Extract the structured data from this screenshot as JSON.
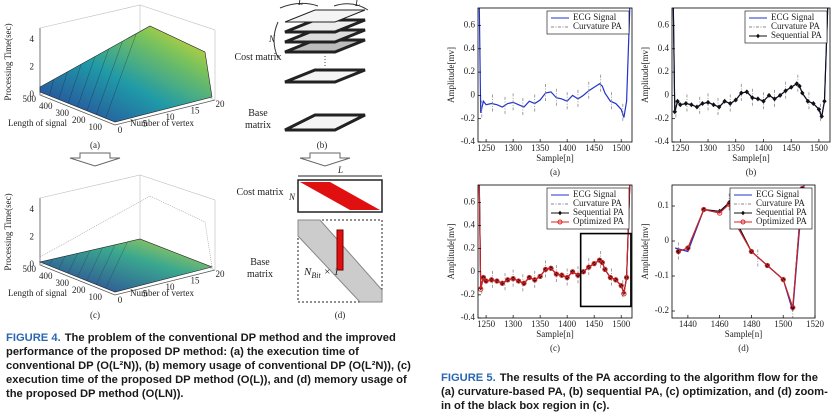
{
  "figure4": {
    "panel_a": {
      "z_label": "Processing Time(sec)",
      "z_ticks": [
        0,
        2,
        4
      ],
      "y_label": "Length of signal",
      "y_ticks": [
        500,
        400,
        300,
        200,
        100
      ],
      "x_label": "Number of vertex",
      "x_ticks": [
        0,
        5,
        10,
        15,
        20
      ],
      "label": "(a)"
    },
    "panel_b": {
      "width_label": "L",
      "depth_label": "L",
      "height_label": "N",
      "cost": "Cost matrix",
      "base": "Base matrix",
      "label": "(b)"
    },
    "panel_c": {
      "z_label": "Processing Time(sec)",
      "z_ticks": [
        0,
        2,
        4
      ],
      "y_label": "Length of signal",
      "y_ticks": [
        500,
        400,
        300,
        200,
        100
      ],
      "x_label": "Number of vertex",
      "x_ticks": [
        0,
        5,
        10,
        15,
        20
      ],
      "label": "(c)"
    },
    "panel_d": {
      "width_label": "L",
      "height_label": "N",
      "cost": "Cost matrix",
      "base": "Base matrix",
      "nbit": {
        "base": "N",
        "sub": "Bit",
        "rest": "× 1"
      },
      "label": "(d)"
    },
    "caption": {
      "label": "FIGURE 4.",
      "text": "The problem of the conventional DP method and the improved performance of the proposed DP method: (a) the execution time of conventional DP (O(L²N)), (b) memory usage of conventional DP (O(L²N)), (c) execution time of the proposed DP method (O(L)), and (d) memory usage of the proposed DP method (O(LN))."
    }
  },
  "chart_data": [
    {
      "type": "line",
      "panel_label": "(a)",
      "x_label": "Sample[n]",
      "y_label": "Amplitude[mv]",
      "xlim": [
        1235,
        1520
      ],
      "ylim": [
        -0.4,
        0.75
      ],
      "xticks": [
        1250,
        1300,
        1350,
        1400,
        1450,
        1500
      ],
      "yticks": [
        -0.4,
        -0.2,
        0,
        0.2,
        0.4,
        0.6
      ],
      "legend": "upper right",
      "series": [
        {
          "name": "ECG Signal",
          "color": "#2233cc",
          "style": "solid",
          "x": [
            1237,
            1240,
            1245,
            1250,
            1260,
            1270,
            1280,
            1290,
            1300,
            1310,
            1320,
            1330,
            1340,
            1350,
            1360,
            1370,
            1380,
            1390,
            1400,
            1410,
            1420,
            1430,
            1440,
            1450,
            1460,
            1465,
            1470,
            1480,
            1490,
            1500,
            1505,
            1510,
            1517
          ],
          "values": [
            0.9,
            -0.15,
            -0.05,
            -0.08,
            -0.07,
            -0.08,
            -0.1,
            -0.07,
            -0.06,
            -0.08,
            -0.1,
            -0.05,
            -0.07,
            -0.04,
            0.02,
            0.03,
            -0.02,
            -0.03,
            -0.05,
            0,
            -0.03,
            0,
            0.04,
            0.07,
            0.1,
            0.08,
            0.02,
            -0.05,
            -0.07,
            -0.12,
            -0.19,
            -0.05,
            0.9
          ]
        },
        {
          "name": "Curvature PA",
          "color": "#888888",
          "style": "dashdot",
          "x": [
            1242,
            1262,
            1285,
            1300,
            1318,
            1340,
            1360,
            1380,
            1400,
            1420,
            1440,
            1462,
            1482,
            1503
          ],
          "values": [
            -0.12,
            -0.07,
            -0.09,
            -0.06,
            -0.1,
            -0.07,
            0.02,
            -0.02,
            -0.05,
            -0.03,
            0.04,
            0.1,
            -0.05,
            -0.15
          ]
        }
      ]
    },
    {
      "type": "line",
      "panel_label": "(b)",
      "x_label": "Sample[n]",
      "y_label": "Amplitude[mv]",
      "xlim": [
        1235,
        1520
      ],
      "ylim": [
        -0.4,
        0.75
      ],
      "xticks": [
        1250,
        1300,
        1350,
        1400,
        1450,
        1500
      ],
      "yticks": [
        -0.4,
        -0.2,
        0,
        0.2,
        0.4,
        0.6
      ],
      "legend": "upper right",
      "series": [
        {
          "name": "ECG Signal",
          "color": "#2233cc",
          "style": "solid",
          "x": [
            1237,
            1240,
            1245,
            1250,
            1260,
            1270,
            1280,
            1290,
            1300,
            1310,
            1320,
            1330,
            1340,
            1350,
            1360,
            1370,
            1380,
            1390,
            1400,
            1410,
            1420,
            1430,
            1440,
            1450,
            1460,
            1465,
            1470,
            1480,
            1490,
            1500,
            1505,
            1510,
            1517
          ],
          "values": [
            0.9,
            -0.15,
            -0.05,
            -0.08,
            -0.07,
            -0.08,
            -0.1,
            -0.07,
            -0.06,
            -0.08,
            -0.1,
            -0.05,
            -0.07,
            -0.04,
            0.02,
            0.03,
            -0.02,
            -0.03,
            -0.05,
            0,
            -0.03,
            0,
            0.04,
            0.07,
            0.1,
            0.08,
            0.02,
            -0.05,
            -0.07,
            -0.12,
            -0.19,
            -0.05,
            0.9
          ]
        },
        {
          "name": "Curvature PA",
          "color": "#888888",
          "style": "dashdot",
          "x": [
            1242,
            1262,
            1285,
            1300,
            1318,
            1340,
            1360,
            1380,
            1400,
            1420,
            1440,
            1462,
            1482,
            1503
          ],
          "values": [
            -0.12,
            -0.07,
            -0.09,
            -0.06,
            -0.1,
            -0.07,
            0.02,
            -0.02,
            -0.05,
            -0.03,
            0.04,
            0.1,
            -0.05,
            -0.15
          ]
        },
        {
          "name": "Sequential PA",
          "color": "#111111",
          "style": "solid",
          "marker": "diamond",
          "x": [
            1237,
            1240,
            1245,
            1250,
            1260,
            1270,
            1280,
            1290,
            1300,
            1310,
            1320,
            1330,
            1340,
            1350,
            1360,
            1370,
            1380,
            1390,
            1400,
            1410,
            1420,
            1430,
            1440,
            1450,
            1460,
            1465,
            1470,
            1480,
            1490,
            1500,
            1505,
            1510,
            1517
          ],
          "values": [
            0.9,
            -0.14,
            -0.05,
            -0.08,
            -0.07,
            -0.08,
            -0.1,
            -0.07,
            -0.06,
            -0.08,
            -0.1,
            -0.05,
            -0.07,
            -0.04,
            0.02,
            0.03,
            -0.02,
            -0.03,
            -0.05,
            0,
            -0.03,
            0,
            0.04,
            0.07,
            0.1,
            0.08,
            0.02,
            -0.05,
            -0.07,
            -0.12,
            -0.18,
            -0.05,
            0.9
          ]
        }
      ]
    },
    {
      "type": "line",
      "panel_label": "(c)",
      "x_label": "Sample[n]",
      "y_label": "Amplitude[mv]",
      "xlim": [
        1235,
        1520
      ],
      "ylim": [
        -0.4,
        0.75
      ],
      "xticks": [
        1250,
        1300,
        1350,
        1400,
        1450,
        1500
      ],
      "yticks": [
        -0.4,
        -0.2,
        0,
        0.2,
        0.4,
        0.6
      ],
      "legend": "upper right",
      "highlight_box": {
        "x": [
          1425,
          1518
        ],
        "y": [
          -0.3,
          0.33
        ]
      },
      "series": [
        {
          "name": "ECG Signal",
          "color": "#2233cc",
          "style": "solid",
          "x": [
            1237,
            1240,
            1245,
            1250,
            1260,
            1270,
            1280,
            1290,
            1300,
            1310,
            1320,
            1330,
            1340,
            1350,
            1360,
            1370,
            1380,
            1390,
            1400,
            1410,
            1420,
            1430,
            1440,
            1450,
            1460,
            1465,
            1470,
            1480,
            1490,
            1500,
            1505,
            1510,
            1517
          ],
          "values": [
            0.9,
            -0.15,
            -0.05,
            -0.08,
            -0.07,
            -0.08,
            -0.1,
            -0.07,
            -0.06,
            -0.08,
            -0.1,
            -0.05,
            -0.07,
            -0.04,
            0.02,
            0.03,
            -0.02,
            -0.03,
            -0.05,
            0,
            -0.03,
            0,
            0.04,
            0.07,
            0.1,
            0.08,
            0.02,
            -0.05,
            -0.07,
            -0.12,
            -0.19,
            -0.05,
            0.9
          ]
        },
        {
          "name": "Curvature PA",
          "color": "#888888",
          "style": "dashdot",
          "x": [
            1242,
            1262,
            1285,
            1300,
            1318,
            1340,
            1360,
            1380,
            1400,
            1420,
            1440,
            1462,
            1482,
            1503
          ],
          "values": [
            -0.12,
            -0.07,
            -0.09,
            -0.06,
            -0.1,
            -0.07,
            0.02,
            -0.02,
            -0.05,
            -0.03,
            0.04,
            0.1,
            -0.05,
            -0.15
          ]
        },
        {
          "name": "Sequential PA",
          "color": "#111111",
          "style": "solid",
          "marker": "diamond",
          "x": [
            1237,
            1240,
            1245,
            1250,
            1260,
            1270,
            1280,
            1290,
            1300,
            1310,
            1320,
            1330,
            1340,
            1350,
            1360,
            1370,
            1380,
            1390,
            1400,
            1410,
            1420,
            1430,
            1440,
            1450,
            1460,
            1465,
            1470,
            1480,
            1490,
            1500,
            1505,
            1510,
            1517
          ],
          "values": [
            0.9,
            -0.14,
            -0.05,
            -0.08,
            -0.07,
            -0.08,
            -0.1,
            -0.07,
            -0.06,
            -0.08,
            -0.1,
            -0.05,
            -0.07,
            -0.04,
            0.02,
            0.03,
            -0.02,
            -0.03,
            -0.05,
            0,
            -0.03,
            0,
            0.04,
            0.07,
            0.1,
            0.08,
            0.02,
            -0.05,
            -0.07,
            -0.12,
            -0.18,
            -0.05,
            0.9
          ]
        },
        {
          "name": "Optimized PA",
          "color": "#dd2222",
          "style": "solid",
          "marker": "circle",
          "x": [
            1237,
            1240,
            1245,
            1250,
            1260,
            1270,
            1280,
            1290,
            1300,
            1310,
            1320,
            1330,
            1340,
            1350,
            1360,
            1370,
            1380,
            1390,
            1400,
            1410,
            1420,
            1430,
            1440,
            1450,
            1460,
            1465,
            1470,
            1480,
            1490,
            1500,
            1505,
            1510,
            1517
          ],
          "values": [
            0.9,
            -0.15,
            -0.05,
            -0.08,
            -0.07,
            -0.08,
            -0.1,
            -0.07,
            -0.06,
            -0.08,
            -0.1,
            -0.05,
            -0.07,
            -0.04,
            0.02,
            0.03,
            -0.02,
            -0.03,
            -0.05,
            0,
            -0.03,
            0,
            0.04,
            0.07,
            0.1,
            0.08,
            0.02,
            -0.05,
            -0.07,
            -0.12,
            -0.19,
            -0.05,
            0.9
          ]
        }
      ]
    },
    {
      "type": "line",
      "panel_label": "(d)",
      "x_label": "Sample[n]",
      "y_label": "Amplitude[mv]",
      "xlim": [
        1430,
        1520
      ],
      "ylim": [
        -0.22,
        0.16
      ],
      "xticks": [
        1440,
        1460,
        1480,
        1500,
        1520
      ],
      "yticks": [
        -0.2,
        -0.1,
        0,
        0.1
      ],
      "legend": "upper right",
      "series": [
        {
          "name": "ECG Signal",
          "color": "#2233cc",
          "style": "solid",
          "x": [
            1432,
            1440,
            1450,
            1460,
            1466,
            1470,
            1480,
            1490,
            1500,
            1506,
            1510,
            1514
          ],
          "values": [
            -0.02,
            -0.03,
            0.09,
            0.08,
            0.11,
            0.05,
            -0.03,
            -0.07,
            -0.11,
            -0.2,
            0.02,
            0.2
          ]
        },
        {
          "name": "Curvature PA",
          "color": "#888888",
          "style": "dashdot",
          "x": [
            1434,
            1466,
            1484,
            1506
          ],
          "values": [
            -0.03,
            0.11,
            -0.05,
            -0.2
          ]
        },
        {
          "name": "Sequential PA",
          "color": "#111111",
          "style": "solid",
          "marker": "diamond",
          "x": [
            1434,
            1440,
            1450,
            1460,
            1466,
            1470,
            1480,
            1490,
            1500,
            1506,
            1512
          ],
          "values": [
            -0.03,
            -0.02,
            0.09,
            0.085,
            0.11,
            0.06,
            -0.03,
            -0.07,
            -0.11,
            -0.19,
            0.15
          ]
        },
        {
          "name": "Optimized PA",
          "color": "#dd2222",
          "style": "solid",
          "marker": "circle",
          "x": [
            1434,
            1440,
            1450,
            1460,
            1466,
            1470,
            1480,
            1490,
            1500,
            1506,
            1512
          ],
          "values": [
            -0.03,
            -0.02,
            0.09,
            0.08,
            0.105,
            0.05,
            -0.03,
            -0.07,
            -0.11,
            -0.19,
            0.15
          ]
        }
      ]
    }
  ],
  "figure5_caption": {
    "label": "FIGURE 5.",
    "text": "The results of the PA according to the algorithm flow for the (a) curvature-based PA, (b) sequential PA, (c) optimization, and (d) zoom-in of the black box region in (c)."
  }
}
